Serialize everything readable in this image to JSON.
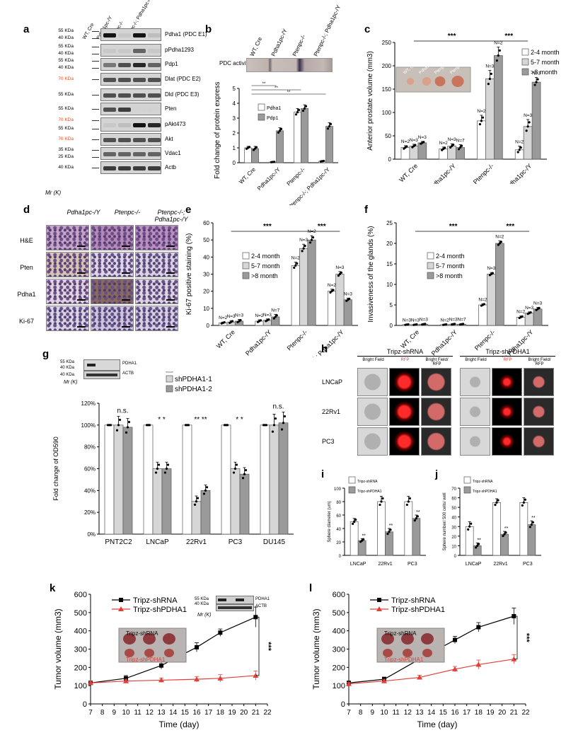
{
  "labels": {
    "a": "a",
    "b": "b",
    "c": "c",
    "d": "d",
    "e": "e",
    "f": "f",
    "g": "g",
    "h": "h",
    "i": "i",
    "j": "j",
    "k": "k",
    "l": "l"
  },
  "panel_a": {
    "lanes": [
      "WT, Cre",
      "Pdha1pc-/Y",
      "Ptenpc-/-",
      "Ptenpc-/-; Pdha1pc-/Y"
    ],
    "rows": [
      {
        "label": "Pdha1 (PDC E1)",
        "markers": [
          "55 KDa",
          "40 KDa"
        ],
        "highlight": false
      },
      {
        "label": "pPdha1293",
        "markers": [
          "55 KDa",
          "40 KDa"
        ],
        "highlight": false
      },
      {
        "label": "Pdp1",
        "markers": [
          "55 KDa",
          "40 KDa"
        ],
        "highlight": false
      },
      {
        "label": "Dlat (PDC E2)",
        "markers": [
          "70 KDa"
        ],
        "highlight": true
      },
      {
        "label": "Dld  (PDC E3)",
        "markers": [
          "55 KDa"
        ],
        "highlight": false
      },
      {
        "label": "Pten",
        "markers": [
          "55 KDa"
        ],
        "highlight": false
      },
      {
        "label": "pAkt473",
        "markers": [
          "70 KDa",
          "55 KDa"
        ],
        "highlight": true
      },
      {
        "label": "Akt",
        "markers": [
          "70 KDa"
        ],
        "highlight": true
      },
      {
        "label": "Vdac1",
        "markers": [
          "35 KDa",
          "25 KDa"
        ],
        "highlight": false
      },
      {
        "label": "Actb",
        "markers": [
          "40 KDa"
        ],
        "highlight": false
      }
    ],
    "mr": "Mr (K)"
  },
  "panel_b_header": {
    "activity": "PDC activity"
  },
  "panel_h": {
    "groups": [
      "Tripz-shRNA",
      "Tripz-shPDHA1"
    ],
    "cols": [
      "Bright Field",
      "RFP",
      "Bright Field/ RFP"
    ],
    "rows": [
      "LNCaP",
      "22Rv1",
      "PC3"
    ]
  },
  "panel_d": {
    "cols": [
      "Pdha1pc-/Y",
      "Ptenpc-/-",
      "Ptenpc-/-; Pdha1pc-/Y"
    ],
    "rows": [
      "H&E",
      "Pten",
      "Pdha1",
      "Ki-67"
    ]
  },
  "panel_g_blot": {
    "markers": [
      "55 KDa",
      "40 KDa"
    ],
    "bands": [
      "PDHA1",
      "ACTB"
    ],
    "mr": "Mr (K)"
  },
  "panel_k_blot": {
    "markers": [
      "55 KDa",
      "40 KDa"
    ],
    "bands": [
      "PDHA1",
      "ACTB"
    ],
    "mr": "Mr (K)"
  },
  "chart_data": [
    {
      "id": "b",
      "type": "bar",
      "categories": [
        "WT, Cre",
        "Pdha1pc-/Y",
        "Ptenpc-/-",
        "Ptenpc-/-; Pdha1pc-/Y"
      ],
      "series": [
        {
          "name": "Pdha1",
          "values": [
            1.0,
            0.05,
            3.4,
            0.1
          ],
          "errors": [
            0.1,
            0.02,
            0.25,
            0.03
          ]
        },
        {
          "name": "Pdp1",
          "values": [
            0.95,
            2.15,
            3.65,
            2.45
          ],
          "errors": [
            0.15,
            0.2,
            0.25,
            0.25
          ]
        }
      ],
      "ylabel": "Fold change of protein expression",
      "ylim": [
        0,
        5
      ],
      "yticks": [
        0,
        1,
        2,
        3,
        4,
        5
      ],
      "significance": [
        "**",
        "**",
        "**"
      ]
    },
    {
      "id": "c",
      "type": "bar",
      "categories": [
        "WT, Cre",
        "Pdha1pc-/Y",
        "Ptenpc-/-",
        "Ptenpc-/-; Pdha1pc-/Y"
      ],
      "series": [
        {
          "name": "2-4 month",
          "values": [
            25,
            22,
            82,
            20
          ],
          "errors": [
            4,
            4,
            12,
            8
          ]
        },
        {
          "name": "5-7 month",
          "values": [
            28,
            28,
            172,
            70
          ],
          "errors": [
            4,
            5,
            18,
            15
          ]
        },
        {
          "name": ">8 month",
          "values": [
            35,
            25,
            222,
            165
          ],
          "errors": [
            3,
            6,
            18,
            10
          ]
        }
      ],
      "ns": [
        [
          "N=2",
          "N=3",
          "N=3"
        ],
        [
          "N=2",
          "N=3",
          "N=7"
        ],
        [
          "N=2",
          "N=3",
          "N=2"
        ],
        [
          "N=2",
          "N=3",
          "N=3"
        ]
      ],
      "ylabel": "Anterior prostate volume (mm3)",
      "ylim": [
        0,
        250
      ],
      "yticks": [
        0,
        50,
        100,
        150,
        200,
        250
      ],
      "significance": [
        "***",
        "***"
      ]
    },
    {
      "id": "e",
      "type": "bar",
      "categories": [
        "WT, Cre",
        "Pdha1pc-/Y",
        "Ptenpc-/-",
        "Ptenpc-/-; Pdha1pc-/Y"
      ],
      "series": [
        {
          "name": "2-4 month",
          "values": [
            1.5,
            2.5,
            35,
            20
          ],
          "errors": [
            0.5,
            0.8,
            2,
            1.2
          ]
        },
        {
          "name": "5-7 month",
          "values": [
            2,
            3,
            45,
            30
          ],
          "errors": [
            0.8,
            0.8,
            2.5,
            1.5
          ]
        },
        {
          "name": ">8 month",
          "values": [
            2.5,
            5,
            50,
            15
          ],
          "errors": [
            1,
            1.5,
            2.5,
            1
          ]
        }
      ],
      "ns": [
        [
          "N=2",
          "N=3",
          "N=3"
        ],
        [
          "N=2",
          "N=3",
          "N=7"
        ],
        [
          "N=2",
          "N=3",
          "N=2"
        ],
        [
          "N=2",
          "N=3",
          "N=3"
        ]
      ],
      "ylabel": "Ki-67 positive staining (%)",
      "ylim": [
        0,
        60
      ],
      "yticks": [
        0,
        10,
        20,
        30,
        40,
        50,
        60
      ],
      "significance": [
        "***",
        "***"
      ]
    },
    {
      "id": "f",
      "type": "bar",
      "categories": [
        "WT, Cre",
        "Pdha1pc-/Y",
        "Ptenpc-/-",
        "Ptenpc-/-; Pdha1pc-/Y"
      ],
      "series": [
        {
          "name": "2-4 month",
          "values": [
            0.2,
            0.2,
            5,
            2
          ],
          "errors": [
            0.1,
            0.1,
            0.3,
            0.3
          ]
        },
        {
          "name": "5-7 month",
          "values": [
            0.2,
            0.3,
            12.5,
            3
          ],
          "errors": [
            0.1,
            0.1,
            0.4,
            0.3
          ]
        },
        {
          "name": ">8 month",
          "values": [
            0.3,
            0.3,
            20,
            4
          ],
          "errors": [
            0.1,
            0.1,
            0.6,
            0.4
          ]
        }
      ],
      "ns": [
        [
          "N=3",
          "N=3",
          "N=3"
        ],
        [
          "N=2",
          "N=3",
          "N=7"
        ],
        [
          "N=2",
          "N=3",
          "N=2"
        ],
        [
          "N=2",
          "N=3",
          "N=3"
        ]
      ],
      "ylabel": "Invasiveness of the glands (%)",
      "ylim": [
        0,
        25
      ],
      "yticks": [
        0,
        5,
        10,
        15,
        20,
        25
      ],
      "significance": [
        "***",
        "***"
      ]
    },
    {
      "id": "g",
      "type": "bar",
      "categories": [
        "PNT2C2",
        "LNCaP",
        "22Rv1",
        "PC3",
        "DU145"
      ],
      "series": [
        {
          "name": "shRNA",
          "values": [
            100,
            100,
            100,
            100,
            100
          ],
          "errors": [
            0,
            0,
            0,
            0,
            0
          ]
        },
        {
          "name": "shPDHA1-1",
          "values": [
            100,
            60,
            30,
            60,
            100
          ],
          "errors": [
            8,
            6,
            5,
            6,
            10
          ]
        },
        {
          "name": "shPDHA1-2",
          "values": [
            98,
            60,
            40,
            55,
            102
          ],
          "errors": [
            8,
            6,
            5,
            6,
            10
          ]
        }
      ],
      "labels": [
        "n.s.",
        "* *",
        "** **",
        "* *",
        "n.s."
      ],
      "ylabel": "Fold change of OD590",
      "ylim": [
        0,
        120
      ],
      "yticks": [
        "0%",
        "20%",
        "40%",
        "60%",
        "80%",
        "100%",
        "120%"
      ]
    },
    {
      "id": "i",
      "type": "bar",
      "categories": [
        "LNCaP",
        "22Rv1",
        "PC3"
      ],
      "series": [
        {
          "name": "Tripz-shRNA",
          "values": [
            50,
            80,
            80
          ],
          "errors": [
            5,
            8,
            8
          ]
        },
        {
          "name": "Tripz-shPDHA1",
          "values": [
            22,
            35,
            55
          ],
          "errors": [
            3,
            5,
            5
          ]
        }
      ],
      "ylabel": "Sphere diameter (um)",
      "ylim": [
        0,
        100
      ],
      "yticks": [
        0,
        20,
        40,
        60,
        80,
        100
      ],
      "labels": [
        "**",
        "**",
        "**"
      ]
    },
    {
      "id": "j",
      "type": "bar",
      "categories": [
        "LNCaP",
        "22Rv1",
        "PC3"
      ],
      "series": [
        {
          "name": "Tripz-shRNA",
          "values": [
            30,
            55,
            55
          ],
          "errors": [
            5,
            4,
            5
          ]
        },
        {
          "name": "Tripz-shPDHA1",
          "values": [
            10,
            22,
            32
          ],
          "errors": [
            3,
            3,
            4
          ]
        }
      ],
      "ylabel": "Sphere number/ 500 cells/ well",
      "ylim": [
        0,
        70
      ],
      "yticks": [
        0,
        10,
        20,
        30,
        40,
        50,
        60,
        70
      ],
      "labels": [
        "**",
        "**",
        "**"
      ]
    },
    {
      "id": "k",
      "type": "line",
      "x": [
        7,
        10,
        13,
        16,
        18,
        21
      ],
      "series": [
        {
          "name": "Tripz-shRNA",
          "values": [
            115,
            140,
            210,
            310,
            390,
            475
          ],
          "errors": [
            10,
            15,
            20,
            25,
            20,
            55
          ]
        },
        {
          "name": "Tripz-shPDHA1",
          "values": [
            115,
            125,
            130,
            135,
            140,
            155
          ],
          "errors": [
            8,
            10,
            12,
            15,
            20,
            25
          ]
        }
      ],
      "xlabel": "Time (day)",
      "ylabel": "Tumor volume (mm3)",
      "xlim": [
        7,
        22
      ],
      "xticks": [
        7,
        8,
        9,
        10,
        11,
        12,
        13,
        14,
        15,
        16,
        17,
        18,
        19,
        20,
        21,
        22
      ],
      "ylim": [
        0,
        600
      ],
      "yticks": [
        0,
        100,
        200,
        300,
        400,
        500,
        600
      ],
      "significance": "***",
      "photo": {
        "top": "Tripz-shRNA",
        "bottom": "Tripz-shPDHA1"
      }
    },
    {
      "id": "l",
      "type": "line",
      "x": [
        7,
        10,
        13,
        16,
        18,
        21
      ],
      "series": [
        {
          "name": "Tripz-shRNA",
          "values": [
            115,
            135,
            245,
            350,
            420,
            480
          ],
          "errors": [
            10,
            12,
            20,
            20,
            25,
            45
          ]
        },
        {
          "name": "Tripz-shPDHA1",
          "values": [
            110,
            125,
            145,
            190,
            215,
            245
          ],
          "errors": [
            8,
            10,
            12,
            15,
            25,
            25
          ]
        }
      ],
      "xlabel": "Time (day)",
      "ylabel": "Tumor volume (mm3)",
      "xlim": [
        7,
        22
      ],
      "xticks": [
        7,
        8,
        9,
        10,
        11,
        12,
        13,
        14,
        15,
        16,
        17,
        18,
        19,
        20,
        21,
        22
      ],
      "ylim": [
        0,
        600
      ],
      "yticks": [
        0,
        100,
        200,
        300,
        400,
        500,
        600
      ],
      "significance": "***",
      "photo": {
        "top": "Tripz-shRNA",
        "bottom": "Tripz-shPDHA1"
      }
    }
  ]
}
